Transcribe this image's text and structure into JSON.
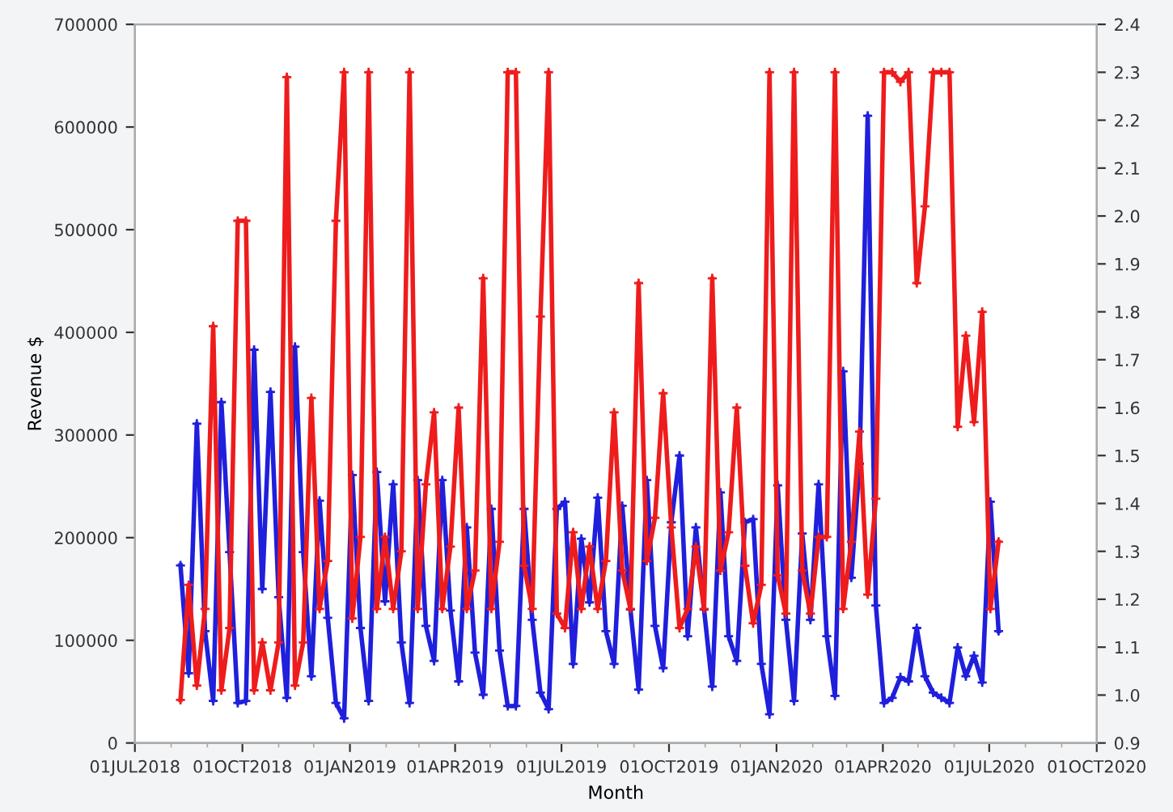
{
  "chart_data": {
    "type": "line",
    "xlabel": "Month",
    "ylabel": "Revenue $",
    "x": [
      "2018-08-09",
      "2018-08-16",
      "2018-08-23",
      "2018-08-30",
      "2018-09-06",
      "2018-09-13",
      "2018-09-20",
      "2018-09-27",
      "2018-10-04",
      "2018-10-11",
      "2018-10-18",
      "2018-10-25",
      "2018-11-01",
      "2018-11-08",
      "2018-11-15",
      "2018-11-22",
      "2018-11-29",
      "2018-12-06",
      "2018-12-13",
      "2018-12-20",
      "2018-12-27",
      "2019-01-03",
      "2019-01-10",
      "2019-01-17",
      "2019-01-24",
      "2019-01-31",
      "2019-02-07",
      "2019-02-14",
      "2019-02-21",
      "2019-02-28",
      "2019-03-07",
      "2019-03-14",
      "2019-03-21",
      "2019-03-28",
      "2019-04-04",
      "2019-04-11",
      "2019-04-18",
      "2019-04-25",
      "2019-05-02",
      "2019-05-09",
      "2019-05-16",
      "2019-05-23",
      "2019-05-30",
      "2019-06-06",
      "2019-06-13",
      "2019-06-20",
      "2019-06-27",
      "2019-07-04",
      "2019-07-11",
      "2019-07-18",
      "2019-07-25",
      "2019-08-01",
      "2019-08-08",
      "2019-08-15",
      "2019-08-22",
      "2019-08-29",
      "2019-09-05",
      "2019-09-12",
      "2019-09-19",
      "2019-09-26",
      "2019-10-03",
      "2019-10-10",
      "2019-10-17",
      "2019-10-24",
      "2019-10-31",
      "2019-11-07",
      "2019-11-14",
      "2019-11-21",
      "2019-11-28",
      "2019-12-05",
      "2019-12-12",
      "2019-12-19",
      "2019-12-26",
      "2020-01-02",
      "2020-01-09",
      "2020-01-16",
      "2020-01-23",
      "2020-01-30",
      "2020-02-06",
      "2020-02-13",
      "2020-02-20",
      "2020-02-27",
      "2020-03-05",
      "2020-03-12",
      "2020-03-19",
      "2020-03-26",
      "2020-04-02",
      "2020-04-09",
      "2020-04-16",
      "2020-04-23",
      "2020-04-30",
      "2020-05-07",
      "2020-05-14",
      "2020-05-21",
      "2020-05-28",
      "2020-06-04",
      "2020-06-11",
      "2020-06-18",
      "2020-06-25",
      "2020-07-02",
      "2020-07-09"
    ],
    "series": [
      {
        "color": "#1f1fdc",
        "values": [
          173000,
          68000,
          311000,
          109000,
          41000,
          332000,
          186000,
          39000,
          41000,
          383000,
          150000,
          342000,
          142000,
          44000,
          386000,
          186000,
          65000,
          236000,
          122000,
          39000,
          24000,
          261000,
          112000,
          41000,
          264000,
          138000,
          252000,
          98000,
          39000,
          256000,
          114000,
          80000,
          256000,
          129000,
          60000,
          210000,
          88000,
          47000,
          228000,
          90000,
          36000,
          36000,
          228000,
          120000,
          49000,
          33000,
          228000,
          235000,
          77000,
          199000,
          137000,
          239000,
          109000,
          77000,
          231000,
          130000,
          52000,
          256000,
          114000,
          73000,
          215000,
          280000,
          104000,
          210000,
          130000,
          55000,
          244000,
          104000,
          80000,
          215000,
          218000,
          77000,
          28000,
          251000,
          120000,
          41000,
          204000,
          120000,
          252000,
          104000,
          46000,
          362000,
          161000,
          272000,
          611000,
          134000,
          39000,
          44000,
          64000,
          60000,
          112000,
          65000,
          49000,
          44000,
          39000,
          93000,
          65000,
          85000,
          59000,
          235000,
          109000
        ]
      },
      {
        "color": "#ee1c1c",
        "axis": "y2",
        "values": [
          0.99,
          1.23,
          1.02,
          1.18,
          1.77,
          1.01,
          1.14,
          1.99,
          1.99,
          1.01,
          1.11,
          1.01,
          1.11,
          2.29,
          1.02,
          1.11,
          1.62,
          1.18,
          1.28,
          1.99,
          2.3,
          1.16,
          1.33,
          2.3,
          1.18,
          1.33,
          1.18,
          1.3,
          2.3,
          1.18,
          1.44,
          1.59,
          1.18,
          1.31,
          1.6,
          1.18,
          1.26,
          1.87,
          1.18,
          1.32,
          2.3,
          2.3,
          1.27,
          1.18,
          1.79,
          2.3,
          1.17,
          1.14,
          1.34,
          1.18,
          1.31,
          1.18,
          1.28,
          1.59,
          1.26,
          1.18,
          1.86,
          1.28,
          1.37,
          1.63,
          1.35,
          1.14,
          1.18,
          1.31,
          1.18,
          1.87,
          1.26,
          1.34,
          1.6,
          1.27,
          1.15,
          1.23,
          2.3,
          1.25,
          1.17,
          2.3,
          1.26,
          1.17,
          1.33,
          1.33,
          2.3,
          1.18,
          1.32,
          1.55,
          1.21,
          1.41,
          2.3,
          2.3,
          2.28,
          2.3,
          1.86,
          2.02,
          2.3,
          2.3,
          2.3,
          1.56,
          1.75,
          1.57,
          1.8,
          1.18,
          1.32
        ]
      }
    ],
    "xlim": [
      "2018-07-01",
      "2020-10-01"
    ],
    "xticks": [
      {
        "value": "2018-07-01",
        "label": "01JUL2018"
      },
      {
        "value": "2018-10-01",
        "label": "01OCT2018"
      },
      {
        "value": "2019-01-01",
        "label": "01JAN2019"
      },
      {
        "value": "2019-04-01",
        "label": "01APR2019"
      },
      {
        "value": "2019-07-01",
        "label": "01JUL2019"
      },
      {
        "value": "2019-10-01",
        "label": "01OCT2019"
      },
      {
        "value": "2020-01-01",
        "label": "01JAN2020"
      },
      {
        "value": "2020-04-01",
        "label": "01APR2020"
      },
      {
        "value": "2020-07-01",
        "label": "01JUL2020"
      },
      {
        "value": "2020-10-01",
        "label": "01OCT2020"
      }
    ],
    "ylim": [
      0,
      700000
    ],
    "yticks": [
      0,
      100000,
      200000,
      300000,
      400000,
      500000,
      600000,
      700000
    ],
    "y2lim": [
      0.9,
      2.4
    ],
    "y2ticks": [
      {
        "value": 0.9,
        "label": "0.9"
      },
      {
        "value": 1.0,
        "label": "1.0"
      },
      {
        "value": 1.1,
        "label": "1.1"
      },
      {
        "value": 1.2,
        "label": "1.2"
      },
      {
        "value": 1.3,
        "label": "1.3"
      },
      {
        "value": 1.4,
        "label": "1.4"
      },
      {
        "value": 1.5,
        "label": "1.5"
      },
      {
        "value": 1.6,
        "label": "1.6"
      },
      {
        "value": 1.7,
        "label": "1.7"
      },
      {
        "value": 1.8,
        "label": "1.8"
      },
      {
        "value": 1.9,
        "label": "1.9"
      },
      {
        "value": 2.0,
        "label": "2.0"
      },
      {
        "value": 2.1,
        "label": "2.1"
      },
      {
        "value": 2.2,
        "label": "2.2"
      },
      {
        "value": 2.3,
        "label": "2.3"
      },
      {
        "value": 2.4,
        "label": "2.4"
      }
    ],
    "marker": "cross",
    "line_style": "solid"
  }
}
